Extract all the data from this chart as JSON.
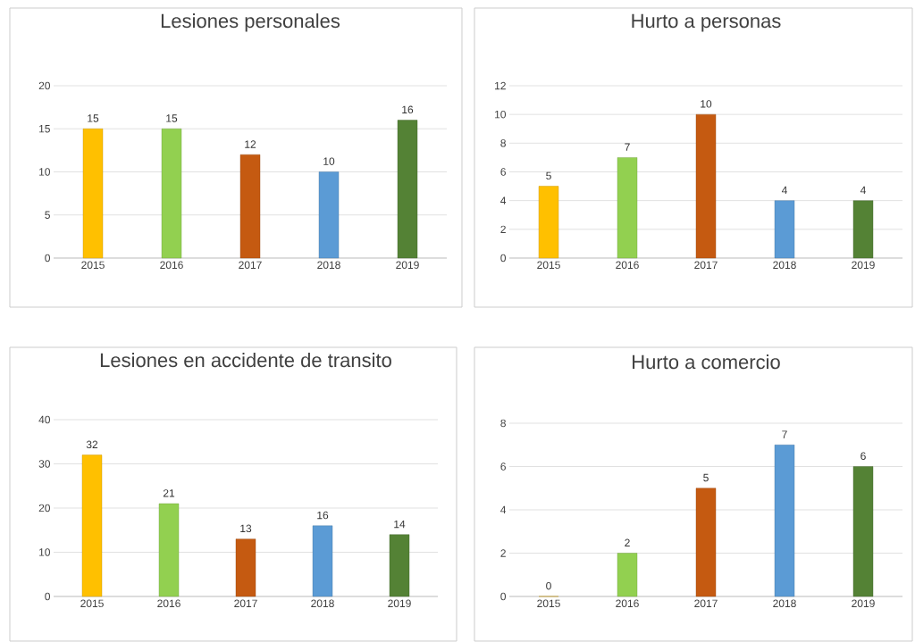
{
  "chart_data": [
    {
      "type": "bar",
      "title": "Lesiones personales",
      "categories": [
        "2015",
        "2016",
        "2017",
        "2018",
        "2019"
      ],
      "values": [
        15,
        15,
        12,
        10,
        16
      ],
      "colors": [
        "#ffc000",
        "#92d050",
        "#c55a11",
        "#5b9bd5",
        "#548235"
      ],
      "ylim": [
        0,
        20
      ],
      "yticks": [
        0,
        5,
        10,
        15,
        20
      ],
      "grid": "y",
      "data_labels": true
    },
    {
      "type": "bar",
      "title": "Hurto a personas",
      "categories": [
        "2015",
        "2016",
        "2017",
        "2018",
        "2019"
      ],
      "values": [
        5,
        7,
        10,
        4,
        4
      ],
      "colors": [
        "#ffc000",
        "#92d050",
        "#c55a11",
        "#5b9bd5",
        "#548235"
      ],
      "ylim": [
        0,
        12
      ],
      "yticks": [
        0,
        2,
        4,
        6,
        8,
        10,
        12
      ],
      "grid": "y",
      "data_labels": true
    },
    {
      "type": "bar",
      "title": "Lesiones en accidente de transito",
      "categories": [
        "2015",
        "2016",
        "2017",
        "2018",
        "2019"
      ],
      "values": [
        32,
        21,
        13,
        16,
        14
      ],
      "colors": [
        "#ffc000",
        "#92d050",
        "#c55a11",
        "#5b9bd5",
        "#548235"
      ],
      "ylim": [
        0,
        40
      ],
      "yticks": [
        0,
        10,
        20,
        30,
        40
      ],
      "grid": "y",
      "data_labels": true
    },
    {
      "type": "bar",
      "title": "Hurto a comercio",
      "categories": [
        "2015",
        "2016",
        "2017",
        "2018",
        "2019"
      ],
      "values": [
        0,
        2,
        5,
        7,
        6
      ],
      "colors": [
        "#ffc000",
        "#92d050",
        "#c55a11",
        "#5b9bd5",
        "#548235"
      ],
      "ylim": [
        0,
        8
      ],
      "yticks": [
        0,
        2,
        4,
        6,
        8
      ],
      "grid": "y",
      "data_labels": true
    }
  ]
}
